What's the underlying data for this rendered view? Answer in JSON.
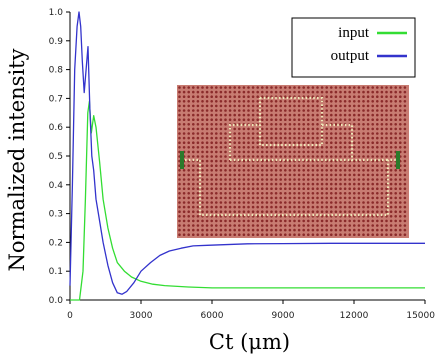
{
  "chart_data": {
    "type": "line",
    "xlabel": "Ct (μm)",
    "ylabel": "Normalized intensity",
    "xlim": [
      0,
      15000
    ],
    "ylim": [
      0,
      1.0
    ],
    "x_ticks": [
      0,
      3000,
      6000,
      9000,
      12000,
      15000
    ],
    "x_tick_labels": [
      "0",
      "3000",
      "6000",
      "9000",
      "12000",
      "15000"
    ],
    "y_ticks": [
      0,
      0.1,
      0.2,
      0.3,
      0.4,
      0.5,
      0.6,
      0.7,
      0.8,
      0.9,
      1.0
    ],
    "y_tick_labels": [
      "0.0",
      "0.1",
      "0.2",
      "0.3",
      "0.4",
      "0.5",
      "0.6",
      "0.7",
      "0.8",
      "0.9",
      "1.0"
    ],
    "grid": false,
    "legend_position": "top-right",
    "series": [
      {
        "name": "input",
        "color": "#33dd33",
        "x": [
          0,
          400,
          550,
          650,
          750,
          820,
          900,
          1000,
          1100,
          1250,
          1400,
          1600,
          1800,
          2000,
          2300,
          2600,
          3000,
          3500,
          4000,
          5000,
          6000,
          8000,
          10000,
          12000,
          15000
        ],
        "y": [
          0,
          0,
          0.1,
          0.35,
          0.65,
          0.69,
          0.58,
          0.64,
          0.6,
          0.48,
          0.35,
          0.25,
          0.18,
          0.13,
          0.1,
          0.08,
          0.065,
          0.055,
          0.05,
          0.045,
          0.042,
          0.042,
          0.042,
          0.042,
          0.042
        ]
      },
      {
        "name": "output",
        "color": "#3333cc",
        "x": [
          0,
          100,
          200,
          300,
          380,
          450,
          520,
          600,
          680,
          760,
          840,
          920,
          1000,
          1100,
          1200,
          1400,
          1600,
          1800,
          2000,
          2200,
          2400,
          2700,
          3000,
          3400,
          3800,
          4200,
          4700,
          5200,
          5800,
          6500,
          7500,
          9000,
          11000,
          13000,
          15000
        ],
        "y": [
          0.05,
          0.4,
          0.8,
          0.95,
          1.0,
          0.95,
          0.83,
          0.72,
          0.8,
          0.88,
          0.66,
          0.5,
          0.45,
          0.35,
          0.3,
          0.2,
          0.12,
          0.06,
          0.025,
          0.02,
          0.03,
          0.06,
          0.1,
          0.13,
          0.155,
          0.17,
          0.18,
          0.188,
          0.19,
          0.192,
          0.195,
          0.196,
          0.197,
          0.197,
          0.197
        ]
      }
    ]
  },
  "inset": {
    "lattice_color": "#8b2b2b",
    "background_color": "#c87c72",
    "guide_color": "#efe7b8",
    "marker_color": "#2b7a2b"
  }
}
